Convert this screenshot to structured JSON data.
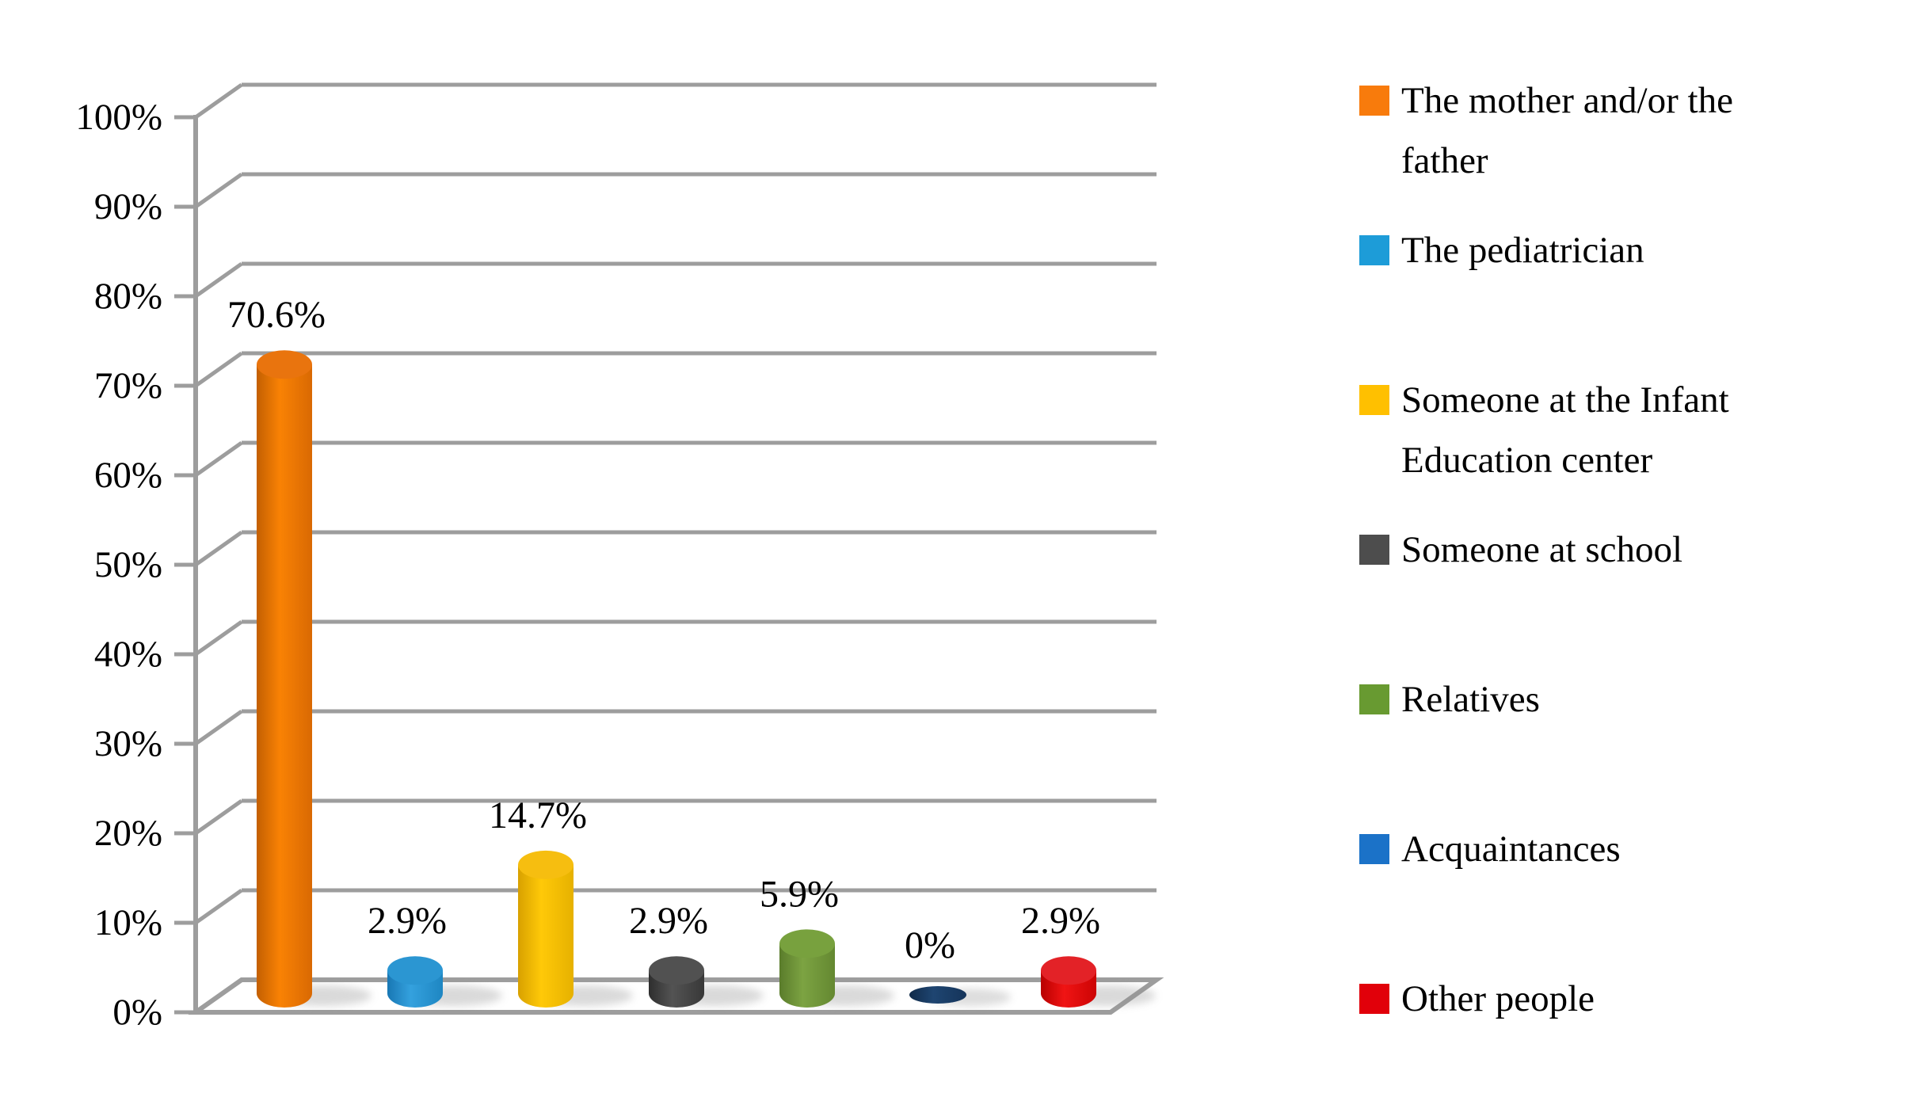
{
  "chart_data": {
    "type": "bar",
    "subtype": "3d-cylinder",
    "title": "",
    "xlabel": "",
    "ylabel": "",
    "categories": [
      "The mother and/or the father",
      "The pediatrician",
      "Someone at the Infant Education center",
      "Someone at school",
      "Relatives",
      "Acquaintances",
      "Other people"
    ],
    "values": [
      70.6,
      2.9,
      14.7,
      2.9,
      5.9,
      0,
      2.9
    ],
    "value_labels": [
      "70.6%",
      "2.9%",
      "14.7%",
      "2.9%",
      "5.9%",
      "0%",
      "2.9%"
    ],
    "y_ticks": [
      "0%",
      "10%",
      "20%",
      "30%",
      "40%",
      "50%",
      "60%",
      "70%",
      "80%",
      "90%",
      "100%"
    ],
    "ylim": [
      0,
      100
    ],
    "grid": true,
    "legend_position": "right",
    "axis_color": "#9d9d9d",
    "bar_colors": [
      {
        "name": "orange",
        "stops": [
          "#C35F02",
          "#F98204",
          "#D96903"
        ],
        "top": "#E9740E"
      },
      {
        "name": "light-blue",
        "stops": [
          "#1877B4",
          "#34A1DE",
          "#1E86C2"
        ],
        "top": "#2B96D2"
      },
      {
        "name": "yellow",
        "stops": [
          "#D8A100",
          "#FFC908",
          "#E6B100"
        ],
        "top": "#F6BE10"
      },
      {
        "name": "dark-gray",
        "stops": [
          "#2E2E2E",
          "#535353",
          "#383838"
        ],
        "top": "#515151"
      },
      {
        "name": "green",
        "stops": [
          "#5A7C2B",
          "#7CA342",
          "#648831"
        ],
        "top": "#78A13E"
      },
      {
        "name": "navy",
        "stops": [
          "#102A49",
          "#1E4571",
          "#15345A"
        ],
        "top": "#1E4571"
      },
      {
        "name": "red",
        "stops": [
          "#B80000",
          "#F01414",
          "#CC0404"
        ],
        "top": "#E32227"
      }
    ]
  },
  "legend": {
    "items": [
      {
        "label": "The mother and/or the father",
        "color": "#F87B0C"
      },
      {
        "label": "The pediatrician",
        "color": "#1D9CD8"
      },
      {
        "label": "Someone at the Infant Education center",
        "color": "#FFC000"
      },
      {
        "label": "Someone at school",
        "color": "#4D4D4D"
      },
      {
        "label": "Relatives",
        "color": "#689A31"
      },
      {
        "label": "Acquaintances",
        "color": "#1B72C8"
      },
      {
        "label": "Other people",
        "color": "#E1000A"
      }
    ]
  }
}
